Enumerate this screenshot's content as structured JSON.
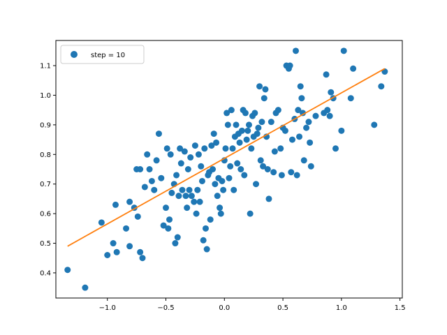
{
  "chart_data": {
    "type": "scatter",
    "xlim": [
      -1.44,
      1.52
    ],
    "ylim": [
      0.315,
      1.185
    ],
    "x_ticks": [
      -1.0,
      -0.5,
      0.0,
      0.5,
      1.0,
      1.5
    ],
    "x_tick_labels": [
      "−1.0",
      "−0.5",
      "0.0",
      "0.5",
      "1.0",
      "1.5"
    ],
    "y_ticks": [
      0.4,
      0.5,
      0.6,
      0.7,
      0.8,
      0.9,
      1.0,
      1.1
    ],
    "y_tick_labels": [
      "0.4",
      "0.5",
      "0.6",
      "0.7",
      "0.8",
      "0.9",
      "1.0",
      "1.1"
    ],
    "grid": false,
    "legend": {
      "placement": "upper-left",
      "entries": [
        "step = 10"
      ]
    },
    "colors": {
      "points": "#1f77b4",
      "fit_line": "#ff7f0e"
    },
    "series": [
      {
        "name": "step = 10",
        "kind": "points",
        "points": [
          [
            -1.34,
            0.41
          ],
          [
            -1.19,
            0.35
          ],
          [
            -1.05,
            0.57
          ],
          [
            -1.0,
            0.46
          ],
          [
            -0.95,
            0.5
          ],
          [
            -0.93,
            0.63
          ],
          [
            -0.92,
            0.47
          ],
          [
            -0.84,
            0.55
          ],
          [
            -0.81,
            0.64
          ],
          [
            -0.81,
            0.49
          ],
          [
            -0.77,
            0.62
          ],
          [
            -0.75,
            0.75
          ],
          [
            -0.74,
            0.59
          ],
          [
            -0.72,
            0.47
          ],
          [
            -0.72,
            0.75
          ],
          [
            -0.7,
            0.45
          ],
          [
            -0.68,
            0.69
          ],
          [
            -0.66,
            0.8
          ],
          [
            -0.64,
            0.75
          ],
          [
            -0.62,
            0.71
          ],
          [
            -0.6,
            0.68
          ],
          [
            -0.58,
            0.78
          ],
          [
            -0.56,
            0.87
          ],
          [
            -0.54,
            0.72
          ],
          [
            -0.52,
            0.56
          ],
          [
            -0.5,
            0.62
          ],
          [
            -0.49,
            0.82
          ],
          [
            -0.48,
            0.55
          ],
          [
            -0.47,
            0.58
          ],
          [
            -0.46,
            0.8
          ],
          [
            -0.45,
            0.67
          ],
          [
            -0.43,
            0.7
          ],
          [
            -0.42,
            0.5
          ],
          [
            -0.41,
            0.73
          ],
          [
            -0.4,
            0.52
          ],
          [
            -0.39,
            0.66
          ],
          [
            -0.38,
            0.82
          ],
          [
            -0.37,
            0.77
          ],
          [
            -0.36,
            0.68
          ],
          [
            -0.34,
            0.81
          ],
          [
            -0.33,
            0.66
          ],
          [
            -0.32,
            0.62
          ],
          [
            -0.31,
            0.75
          ],
          [
            -0.3,
            0.68
          ],
          [
            -0.29,
            0.79
          ],
          [
            -0.28,
            0.66
          ],
          [
            -0.26,
            0.64
          ],
          [
            -0.25,
            0.83
          ],
          [
            -0.24,
            0.6
          ],
          [
            -0.23,
            0.68
          ],
          [
            -0.22,
            0.8
          ],
          [
            -0.21,
            0.64
          ],
          [
            -0.2,
            0.76
          ],
          [
            -0.19,
            0.71
          ],
          [
            -0.18,
            0.51
          ],
          [
            -0.17,
            0.82
          ],
          [
            -0.16,
            0.55
          ],
          [
            -0.15,
            0.48
          ],
          [
            -0.14,
            0.73
          ],
          [
            -0.13,
            0.74
          ],
          [
            -0.12,
            0.58
          ],
          [
            -0.11,
            0.83
          ],
          [
            -0.1,
            0.75
          ],
          [
            -0.09,
            0.87
          ],
          [
            -0.08,
            0.7
          ],
          [
            -0.07,
            0.84
          ],
          [
            -0.06,
            0.66
          ],
          [
            -0.05,
            0.72
          ],
          [
            -0.04,
            0.62
          ],
          [
            -0.03,
            0.6
          ],
          [
            -0.02,
            0.71
          ],
          [
            -0.01,
            0.68
          ],
          [
            0.0,
            0.78
          ],
          [
            0.01,
            0.82
          ],
          [
            0.02,
            0.94
          ],
          [
            0.03,
            0.9
          ],
          [
            0.04,
            0.72
          ],
          [
            0.05,
            0.76
          ],
          [
            0.06,
            0.95
          ],
          [
            0.07,
            0.82
          ],
          [
            0.08,
            0.68
          ],
          [
            0.09,
            0.86
          ],
          [
            0.1,
            0.9
          ],
          [
            0.11,
            0.77
          ],
          [
            0.12,
            0.87
          ],
          [
            0.13,
            0.84
          ],
          [
            0.14,
            0.75
          ],
          [
            0.15,
            0.88
          ],
          [
            0.16,
            0.95
          ],
          [
            0.17,
            0.73
          ],
          [
            0.18,
            0.94
          ],
          [
            0.19,
            0.85
          ],
          [
            0.2,
            0.88
          ],
          [
            0.21,
            0.9
          ],
          [
            0.22,
            0.6
          ],
          [
            0.23,
            0.82
          ],
          [
            0.24,
            0.93
          ],
          [
            0.25,
            0.86
          ],
          [
            0.26,
            0.94
          ],
          [
            0.27,
            0.7
          ],
          [
            0.28,
            0.87
          ],
          [
            0.29,
            0.89
          ],
          [
            0.3,
            1.03
          ],
          [
            0.31,
            0.78
          ],
          [
            0.32,
            0.91
          ],
          [
            0.33,
            0.76
          ],
          [
            0.34,
            0.99
          ],
          [
            0.35,
            1.02
          ],
          [
            0.36,
            0.86
          ],
          [
            0.37,
            0.75
          ],
          [
            0.38,
            0.65
          ],
          [
            0.4,
            0.91
          ],
          [
            0.42,
            0.74
          ],
          [
            0.43,
            0.81
          ],
          [
            0.44,
            0.94
          ],
          [
            0.46,
            0.95
          ],
          [
            0.48,
            0.82
          ],
          [
            0.49,
            0.73
          ],
          [
            0.5,
            0.89
          ],
          [
            0.52,
            0.88
          ],
          [
            0.53,
            1.1
          ],
          [
            0.55,
            1.09
          ],
          [
            0.56,
            1.1
          ],
          [
            0.57,
            0.74
          ],
          [
            0.58,
            0.85
          ],
          [
            0.6,
            0.92
          ],
          [
            0.61,
            1.15
          ],
          [
            0.62,
            0.73
          ],
          [
            0.63,
            0.95
          ],
          [
            0.64,
            0.86
          ],
          [
            0.65,
            1.03
          ],
          [
            0.66,
            0.99
          ],
          [
            0.67,
            0.94
          ],
          [
            0.68,
            0.78
          ],
          [
            0.7,
            0.89
          ],
          [
            0.72,
            0.91
          ],
          [
            0.73,
            0.84
          ],
          [
            0.74,
            0.76
          ],
          [
            0.78,
            0.93
          ],
          [
            0.85,
            0.94
          ],
          [
            0.87,
            1.07
          ],
          [
            0.88,
            0.95
          ],
          [
            0.9,
            0.93
          ],
          [
            0.91,
            1.01
          ],
          [
            0.93,
            0.99
          ],
          [
            0.95,
            0.82
          ],
          [
            1.0,
            0.88
          ],
          [
            1.02,
            1.15
          ],
          [
            1.08,
            0.99
          ],
          [
            1.1,
            1.09
          ],
          [
            1.28,
            0.9
          ],
          [
            1.34,
            1.03
          ],
          [
            1.37,
            1.08
          ]
        ]
      },
      {
        "kind": "line",
        "x": [
          -1.34,
          1.37
        ],
        "y": [
          0.49,
          1.09
        ]
      }
    ]
  }
}
